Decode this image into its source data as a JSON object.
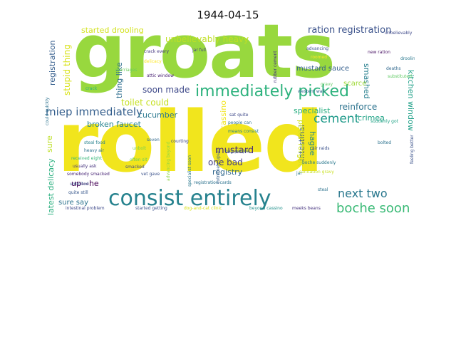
{
  "title": "1944-04-15",
  "words": [
    {
      "text": "rolled",
      "color": "#f1e51d"
    },
    {
      "text": "groats",
      "color": "#98d83e"
    },
    {
      "text": "consist entirely",
      "color": "#26828e"
    },
    {
      "text": "immediately picked",
      "color": "#2db27d"
    },
    {
      "text": "miep immediately",
      "color": "#355f8d"
    },
    {
      "text": "boche soon",
      "color": "#3aba76"
    },
    {
      "text": "next two",
      "color": "#2a788e"
    },
    {
      "text": "cement",
      "color": "#1f9a8a"
    },
    {
      "text": "ration registration",
      "color": "#3b528b"
    },
    {
      "text": "unbelievably heavy",
      "color": "#c0df25"
    },
    {
      "text": "started drooling",
      "color": "#d2e21b"
    },
    {
      "text": "registration",
      "color": "#355e8d"
    },
    {
      "text": "stupid thing",
      "color": "#d8e219"
    },
    {
      "text": "soon made",
      "color": "#3e4989"
    },
    {
      "text": "broken faucet",
      "color": "#25838e"
    },
    {
      "text": "toilet could",
      "color": "#c5e021"
    },
    {
      "text": "cucumber",
      "color": "#2a788e"
    },
    {
      "text": "mustard",
      "color": "#472d7b"
    },
    {
      "text": "one bad",
      "color": "#433e85"
    },
    {
      "text": "registry",
      "color": "#31688e"
    },
    {
      "text": "reinforce",
      "color": "#2c738e"
    },
    {
      "text": "specialist",
      "color": "#28ae80"
    },
    {
      "text": "intestinal",
      "color": "#38588c"
    },
    {
      "text": "crimea",
      "color": "#20a386"
    },
    {
      "text": "hague",
      "color": "#24878e"
    },
    {
      "text": "smashed",
      "color": "#277f8e"
    },
    {
      "text": "kitchen window",
      "color": "#1fa088"
    },
    {
      "text": "latest delicacy",
      "color": "#2ab07f"
    },
    {
      "text": "peter forgot",
      "color": "#d0e11c"
    },
    {
      "text": "mustard sauce",
      "color": "#355f8d"
    },
    {
      "text": "scarce",
      "color": "#a0da39"
    },
    {
      "text": "up—he",
      "color": "#440154"
    },
    {
      "text": "thing like",
      "color": "#2e6e8e"
    },
    {
      "text": "sure",
      "color": "#bddf26"
    },
    {
      "text": "sure say",
      "color": "#2c728e"
    },
    {
      "text": "cassino",
      "color": "#f1e51d"
    },
    {
      "text": "crack every",
      "color": "#453781"
    },
    {
      "text": "jar full",
      "color": "#433e85"
    },
    {
      "text": "advancing",
      "color": "#3b528b"
    },
    {
      "text": "drooling",
      "color": "#2a788e"
    },
    {
      "text": "deaths",
      "color": "#31688e"
    },
    {
      "text": "courting",
      "color": "#3e4989"
    },
    {
      "text": "heavy air",
      "color": "#2c728e"
    },
    {
      "text": "received eight",
      "color": "#35b779"
    },
    {
      "text": "usually ask",
      "color": "#46337e"
    },
    {
      "text": "somebody smacked",
      "color": "#482576"
    },
    {
      "text": "vet gave",
      "color": "#3b528b"
    },
    {
      "text": "quite still",
      "color": "#38588c"
    },
    {
      "text": "steal food",
      "color": "#26828e"
    },
    {
      "text": "unbolt",
      "color": "#7ad151"
    },
    {
      "text": "delicacy",
      "color": "#fde725"
    },
    {
      "text": "marriages",
      "color": "#6ccd5a"
    },
    {
      "text": "attic window",
      "color": "#482173"
    },
    {
      "text": "western wall",
      "color": "#31688e"
    },
    {
      "text": "people can",
      "color": "#2c728e"
    },
    {
      "text": "sat quite",
      "color": "#3e4989"
    },
    {
      "text": "dog-and-cat clinic",
      "color": "#d8e219"
    },
    {
      "text": "started getting",
      "color": "#3b528b"
    },
    {
      "text": "registration cards",
      "color": "#2c728e"
    },
    {
      "text": "meeks beans",
      "color": "#46337e"
    },
    {
      "text": "beyond cassino",
      "color": "#21918c"
    },
    {
      "text": "intestinal problem",
      "color": "#3e4989"
    },
    {
      "text": "boche suddenly",
      "color": "#2a788e"
    },
    {
      "text": "sanitation gravy",
      "color": "#c8e020"
    },
    {
      "text": "new ration",
      "color": "#471063"
    },
    {
      "text": "feeling better",
      "color": "#3b528b"
    },
    {
      "text": "substituted",
      "color": "#5ec962"
    },
    {
      "text": "unbelievably",
      "color": "#3e4989"
    },
    {
      "text": "could quickly",
      "color": "#2c728e"
    },
    {
      "text": "unbolted",
      "color": "#3b528b"
    },
    {
      "text": "extremely upset",
      "color": "#355f8d"
    },
    {
      "text": "seven",
      "color": "#31688e"
    },
    {
      "text": "roomed",
      "color": "#fde725"
    },
    {
      "text": "rubber cement",
      "color": "#46337e"
    },
    {
      "text": "advancing beyond",
      "color": "#90d743"
    },
    {
      "text": "often sit",
      "color": "#6ccd5a"
    },
    {
      "text": "air raids",
      "color": "#3b528b"
    },
    {
      "text": "crack",
      "color": "#2db27d"
    },
    {
      "text": "bag people",
      "color": "#31688e"
    },
    {
      "text": "specialist soon",
      "color": "#2a788e"
    },
    {
      "text": "means consist",
      "color": "#26828e"
    },
    {
      "text": "smacked",
      "color": "#3e4989"
    },
    {
      "text": "suddenly got",
      "color": "#20a386"
    },
    {
      "text": "bolted",
      "color": "#2c728e"
    },
    {
      "text": "gravy",
      "color": "#5ec962"
    },
    {
      "text": "jar",
      "color": "#2a788e"
    },
    {
      "text": "steal",
      "color": "#2c728e"
    }
  ]
}
